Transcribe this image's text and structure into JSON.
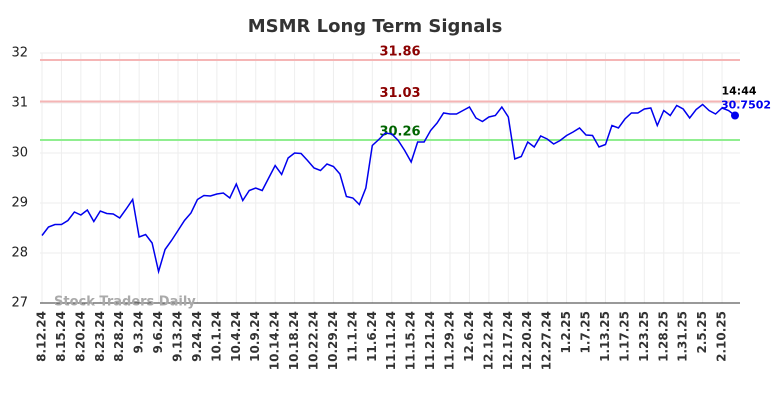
{
  "chart_data": {
    "type": "line",
    "title": "MSMR Long Term Signals",
    "categories": [
      "8.12.24",
      null,
      null,
      "8.15.24",
      null,
      null,
      "8.20.24",
      null,
      null,
      "8.23.24",
      null,
      null,
      "8.28.24",
      null,
      null,
      "9.3.24",
      null,
      null,
      "9.6.24",
      null,
      null,
      "9.13.24",
      null,
      null,
      "9.24.24",
      null,
      null,
      "10.1.24",
      null,
      null,
      "10.4.24",
      null,
      null,
      "10.9.24",
      null,
      null,
      "10.14.24",
      null,
      null,
      "10.18.24",
      null,
      null,
      "10.22.24",
      null,
      null,
      "10.29.24",
      null,
      null,
      "11.1.24",
      null,
      null,
      "11.6.24",
      null,
      null,
      "11.11.24",
      null,
      null,
      "11.15.24",
      null,
      null,
      "11.21.24",
      null,
      null,
      "11.29.24",
      null,
      null,
      "12.6.24",
      null,
      null,
      "12.12.24",
      null,
      null,
      "12.17.24",
      null,
      null,
      "12.20.24",
      null,
      null,
      "12.27.24",
      null,
      null,
      "1.2.25",
      null,
      null,
      "1.7.25",
      null,
      null,
      "1.13.25",
      null,
      null,
      "1.17.25",
      null,
      null,
      "1.23.25",
      null,
      null,
      "1.28.25",
      null,
      null,
      "1.31.25",
      null,
      null,
      "2.5.25",
      null,
      null,
      "2.10.25",
      null,
      null
    ],
    "series": [
      {
        "name": "MSMR",
        "color": "#0000ee",
        "values": [
          28.35,
          28.52,
          28.57,
          28.57,
          28.65,
          28.82,
          28.76,
          28.86,
          28.63,
          28.84,
          28.79,
          28.78,
          28.7,
          28.88,
          29.07,
          28.32,
          28.37,
          28.2,
          27.63,
          28.07,
          28.25,
          28.45,
          28.65,
          28.8,
          29.07,
          29.15,
          29.14,
          29.18,
          29.2,
          29.1,
          29.38,
          29.05,
          29.25,
          29.3,
          29.25,
          29.5,
          29.75,
          29.57,
          29.9,
          30.0,
          29.99,
          29.85,
          29.7,
          29.65,
          29.78,
          29.73,
          29.58,
          29.13,
          29.1,
          28.97,
          29.3,
          30.15,
          30.27,
          30.4,
          30.38,
          30.25,
          30.05,
          29.82,
          30.22,
          30.22,
          30.45,
          30.6,
          30.8,
          30.78,
          30.78,
          30.85,
          30.92,
          30.7,
          30.63,
          30.72,
          30.75,
          30.92,
          30.72,
          29.88,
          29.93,
          30.22,
          30.12,
          30.34,
          30.28,
          30.18,
          30.25,
          30.35,
          30.42,
          30.5,
          30.36,
          30.35,
          30.12,
          30.17,
          30.55,
          30.5,
          30.68,
          30.8,
          30.8,
          30.88,
          30.9,
          30.55,
          30.85,
          30.75,
          30.95,
          30.88,
          30.7,
          30.87,
          30.97,
          30.85,
          30.78,
          30.9,
          30.85,
          30.7502
        ]
      }
    ],
    "hlines": [
      {
        "value": 31.86,
        "color": "#f5b5b5",
        "label_color": "#8b0000"
      },
      {
        "value": 31.03,
        "color": "#f5b5b5",
        "label_color": "#8b0000"
      },
      {
        "value": 30.26,
        "color": "#90ee90",
        "label_color": "#006400"
      }
    ],
    "last_time": "14:44",
    "watermark": "Stock Traders Daily",
    "ylim": [
      27,
      32
    ],
    "yticks": [
      27,
      28,
      29,
      30,
      31,
      32
    ],
    "grid": true
  }
}
